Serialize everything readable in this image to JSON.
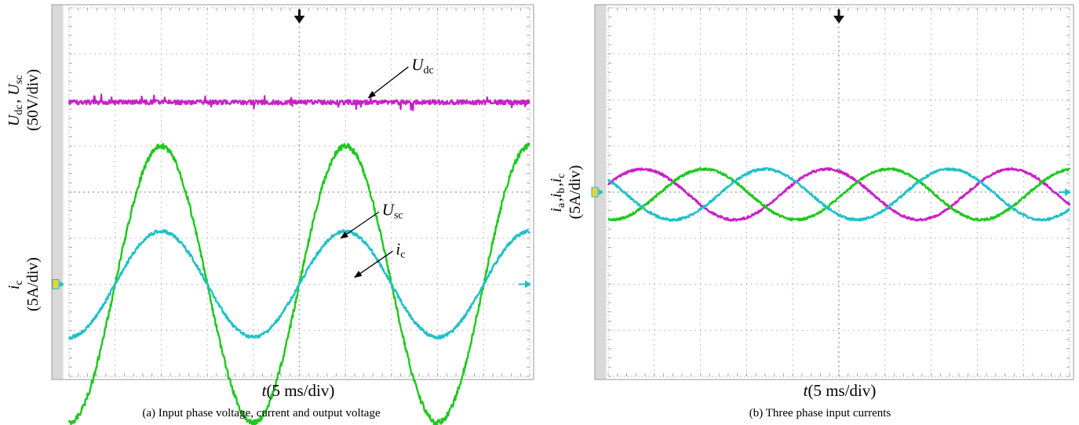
{
  "colors": {
    "magenta": "#c820c8",
    "green": "#1ec81e",
    "cyan": "#20c0c8",
    "screen_bg": "#ffffff",
    "left_bar": "#d9d9d9",
    "grid": "#a8a8a8",
    "border": "#9a9a9a"
  },
  "chart_data": [
    {
      "type": "line",
      "panel": "a",
      "caption": "(a) Input phase voltage, current and output voltage",
      "grid": true,
      "divisions": {
        "x": 10,
        "y": 8
      },
      "x_label": {
        "var": "t",
        "unit": "(5 ms/div)"
      },
      "y_labels": [
        {
          "line1_parts": [
            [
              "U",
              "dc"
            ],
            ", ",
            [
              "U",
              "sc"
            ]
          ],
          "line2": "(50V/div)",
          "y_div": 2.0
        },
        {
          "line1_parts": [
            [
              "i",
              "c"
            ]
          ],
          "line2": "(5A/div)",
          "y_div": 6.0
        }
      ],
      "x_range_ms": [
        0,
        50
      ],
      "series": [
        {
          "name": "Udc",
          "color_key": "magenta",
          "kind": "dc",
          "level_div": 2.05,
          "noise_div": 0.05
        },
        {
          "name": "Usc",
          "color_key": "green",
          "kind": "sine",
          "center_div": 6.0,
          "amp_div": 3.0,
          "period_ms": 20,
          "peak_ms": 10,
          "noise_div": 0.06
        },
        {
          "name": "ic",
          "color_key": "cyan",
          "kind": "sine",
          "center_div": 6.0,
          "amp_div": 1.15,
          "period_ms": 20,
          "peak_ms": 10,
          "noise_div": 0.035
        }
      ],
      "annotations": [
        {
          "label_parts": [
            [
              "U",
              "dc"
            ]
          ],
          "label_at": [
            37,
            1.35
          ],
          "arrow_to": [
            32.5,
            1.95
          ]
        },
        {
          "label_parts": [
            [
              "U",
              "sc"
            ]
          ],
          "label_at": [
            33.8,
            4.5
          ],
          "arrow_to": [
            29.5,
            5.0
          ]
        },
        {
          "label_parts": [
            [
              "i",
              "c"
            ]
          ],
          "label_at": [
            35.3,
            5.35
          ],
          "arrow_to": [
            31.0,
            5.85
          ]
        }
      ],
      "trigger_marker_x_ms": 25,
      "ground_markers": [
        {
          "side": "left",
          "y_div": 6.0,
          "color_key": "cyan",
          "label": "4"
        },
        {
          "side": "right",
          "y_div": 6.0,
          "color_key": "cyan"
        }
      ]
    },
    {
      "type": "line",
      "panel": "b",
      "caption": "(b) Three phase input currents",
      "grid": true,
      "divisions": {
        "x": 10,
        "y": 8
      },
      "x_label": {
        "var": "t",
        "unit": "(5 ms/div)"
      },
      "y_labels": [
        {
          "line1_parts": [
            [
              "i",
              "a"
            ],
            ",",
            [
              "i",
              "b"
            ],
            ",",
            [
              "i",
              "c"
            ]
          ],
          "line2": "(5A/div)",
          "y_div": 4.0
        }
      ],
      "x_range_ms": [
        0,
        50
      ],
      "series": [
        {
          "name": "ia",
          "color_key": "magenta",
          "kind": "sine",
          "center_div": 4.05,
          "amp_div": 0.55,
          "period_ms": 20,
          "peak_ms": 3.7,
          "noise_div": 0.025
        },
        {
          "name": "ib",
          "color_key": "green",
          "kind": "sine",
          "center_div": 4.05,
          "amp_div": 0.55,
          "period_ms": 20,
          "peak_ms": 10.4,
          "noise_div": 0.025
        },
        {
          "name": "ic",
          "color_key": "cyan",
          "kind": "sine",
          "center_div": 4.05,
          "amp_div": 0.55,
          "period_ms": 20,
          "peak_ms": 17.0,
          "noise_div": 0.025
        }
      ],
      "annotations": [],
      "trigger_marker_x_ms": 25,
      "ground_markers": [
        {
          "side": "left",
          "y_div": 4.0,
          "color_key": "cyan",
          "label": "3"
        },
        {
          "side": "right",
          "y_div": 4.0,
          "color_key": "cyan"
        }
      ]
    }
  ]
}
